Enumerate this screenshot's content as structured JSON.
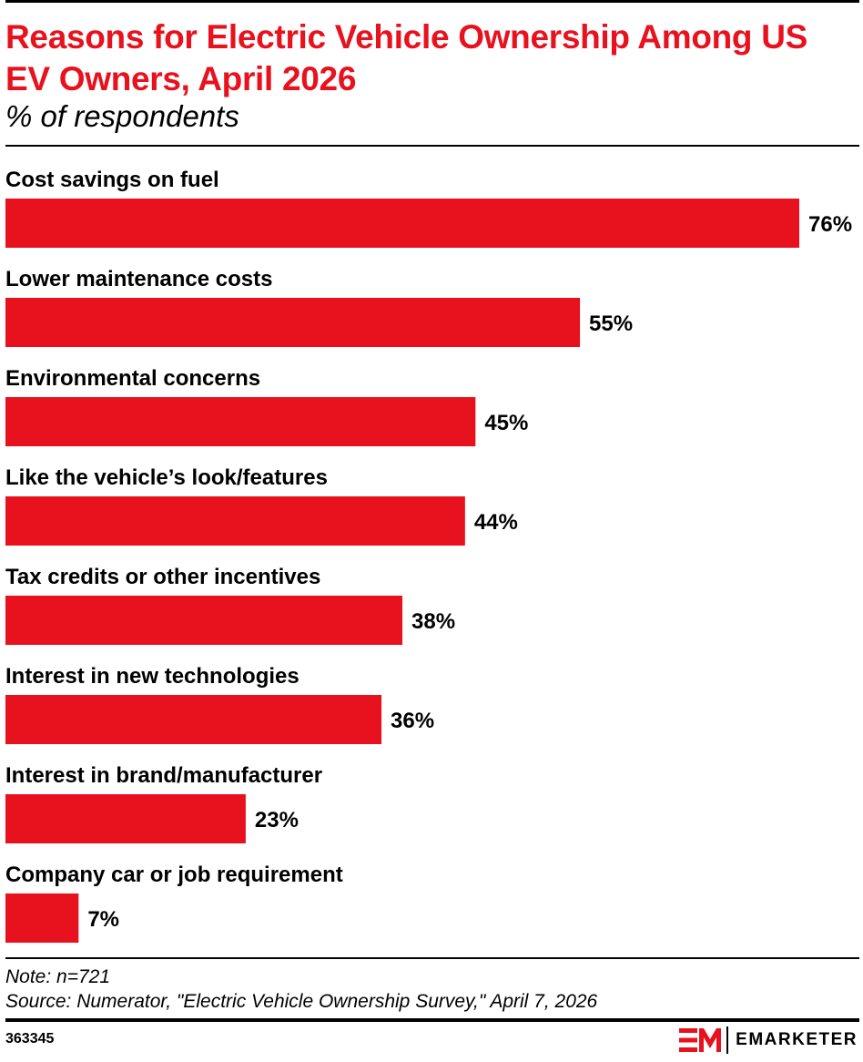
{
  "header": {
    "title": "Reasons for Electric Vehicle Ownership Among US EV Owners, April 2026",
    "subtitle": "% of respondents"
  },
  "colors": {
    "bar": "#e8111e",
    "title": "#e8111e",
    "text": "#000000"
  },
  "chart_data": {
    "type": "bar",
    "orientation": "horizontal",
    "title": "Reasons for Electric Vehicle Ownership Among US EV Owners, April 2026",
    "subtitle": "% of respondents",
    "xlabel": "",
    "ylabel": "",
    "categories": [
      "Cost savings on fuel",
      "Lower maintenance costs",
      "Environmental concerns",
      "Like the vehicle’s look/features",
      "Tax credits or other incentives",
      "Interest in new technologies",
      "Interest in brand/manufacturer",
      "Company car or job requirement"
    ],
    "values": [
      76,
      55,
      45,
      44,
      38,
      36,
      23,
      7
    ],
    "value_labels": [
      "76%",
      "55%",
      "45%",
      "44%",
      "38%",
      "36%",
      "23%",
      "7%"
    ],
    "xlim": [
      0,
      76
    ],
    "grid": false,
    "legend": "none"
  },
  "footer": {
    "note": "Note: n=721",
    "source": "Source: Numerator, \"Electric Vehicle Ownership Survey,\" April 7, 2026",
    "chart_id": "363345",
    "brand": "EMARKETER",
    "logo_icon": "em-logo-icon"
  }
}
